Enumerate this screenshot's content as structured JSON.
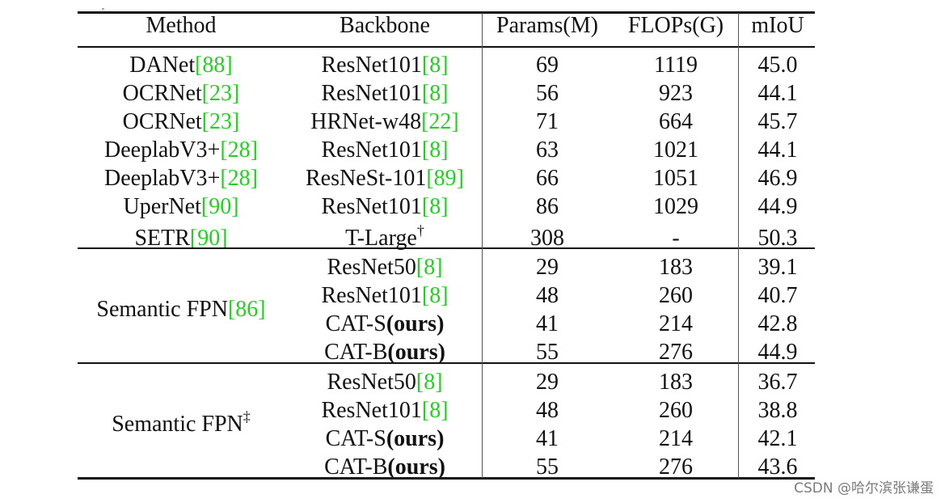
{
  "table": {
    "headers": [
      "Method",
      "Backbone",
      "Params(M)",
      "FLOPs(G)",
      "mIoU"
    ],
    "rows": [
      {
        "method": [
          {
            "t": "DANet"
          },
          {
            "t": "[88]",
            "ref": true
          }
        ],
        "backbone": [
          {
            "t": "ResNet101"
          },
          {
            "t": "[8]",
            "ref": true
          }
        ],
        "params": "69",
        "flops": "1119",
        "miou": "45.0"
      },
      {
        "method": [
          {
            "t": "OCRNet"
          },
          {
            "t": "[23]",
            "ref": true
          }
        ],
        "backbone": [
          {
            "t": "ResNet101"
          },
          {
            "t": "[8]",
            "ref": true
          }
        ],
        "params": "56",
        "flops": "923",
        "miou": "44.1"
      },
      {
        "method": [
          {
            "t": "OCRNet"
          },
          {
            "t": "[23]",
            "ref": true
          }
        ],
        "backbone": [
          {
            "t": "HRNet-w48"
          },
          {
            "t": "[22]",
            "ref": true
          }
        ],
        "params": "71",
        "flops": "664",
        "miou": "45.7"
      },
      {
        "method": [
          {
            "t": "DeeplabV3+"
          },
          {
            "t": "[28]",
            "ref": true
          }
        ],
        "backbone": [
          {
            "t": "ResNet101"
          },
          {
            "t": "[8]",
            "ref": true
          }
        ],
        "params": "63",
        "flops": "1021",
        "miou": "44.1"
      },
      {
        "method": [
          {
            "t": "DeeplabV3+"
          },
          {
            "t": "[28]",
            "ref": true
          }
        ],
        "backbone": [
          {
            "t": "ResNeSt-101"
          },
          {
            "t": "[89]",
            "ref": true
          }
        ],
        "params": "66",
        "flops": "1051",
        "miou": "46.9"
      },
      {
        "method": [
          {
            "t": "UperNet"
          },
          {
            "t": "[90]",
            "ref": true
          }
        ],
        "backbone": [
          {
            "t": "ResNet101"
          },
          {
            "t": "[8]",
            "ref": true
          }
        ],
        "params": "86",
        "flops": "1029",
        "miou": "44.9"
      },
      {
        "method": [
          {
            "t": "SETR"
          },
          {
            "t": "[90]",
            "ref": true
          }
        ],
        "backbone": [
          {
            "t": "T-Large"
          },
          {
            "t": "†",
            "sup": true
          }
        ],
        "params": "308",
        "flops": "-",
        "miou": "50.3"
      }
    ],
    "groups": [
      {
        "method": [
          {
            "t": "Semantic FPN"
          },
          {
            "t": "[86]",
            "ref": true
          }
        ],
        "rows": [
          {
            "backbone": [
              {
                "t": "ResNet50"
              },
              {
                "t": "[8]",
                "ref": true
              }
            ],
            "params": "29",
            "flops": "183",
            "miou": "39.1"
          },
          {
            "backbone": [
              {
                "t": "ResNet101"
              },
              {
                "t": "[8]",
                "ref": true
              }
            ],
            "params": "48",
            "flops": "260",
            "miou": "40.7"
          },
          {
            "backbone": [
              {
                "t": "CAT-S"
              },
              {
                "t": "(ours)",
                "bold": true
              }
            ],
            "params": "41",
            "flops": "214",
            "miou": "42.8"
          },
          {
            "backbone": [
              {
                "t": "CAT-B"
              },
              {
                "t": "(ours)",
                "bold": true
              }
            ],
            "params": "55",
            "flops": "276",
            "miou": "44.9"
          }
        ]
      },
      {
        "method": [
          {
            "t": "Semantic FPN"
          },
          {
            "t": "‡",
            "sup": true
          }
        ],
        "rows": [
          {
            "backbone": [
              {
                "t": "ResNet50"
              },
              {
                "t": "[8]",
                "ref": true
              }
            ],
            "params": "29",
            "flops": "183",
            "miou": "36.7"
          },
          {
            "backbone": [
              {
                "t": "ResNet101"
              },
              {
                "t": "[8]",
                "ref": true
              }
            ],
            "params": "48",
            "flops": "260",
            "miou": "38.8"
          },
          {
            "backbone": [
              {
                "t": "CAT-S"
              },
              {
                "t": "(ours)",
                "bold": true
              }
            ],
            "params": "41",
            "flops": "214",
            "miou": "42.1"
          },
          {
            "backbone": [
              {
                "t": "CAT-B"
              },
              {
                "t": "(ours)",
                "bold": true
              }
            ],
            "params": "55",
            "flops": "276",
            "miou": "43.6"
          }
        ]
      }
    ]
  },
  "watermark": "CSDN @哈尔滨张谦蛋"
}
